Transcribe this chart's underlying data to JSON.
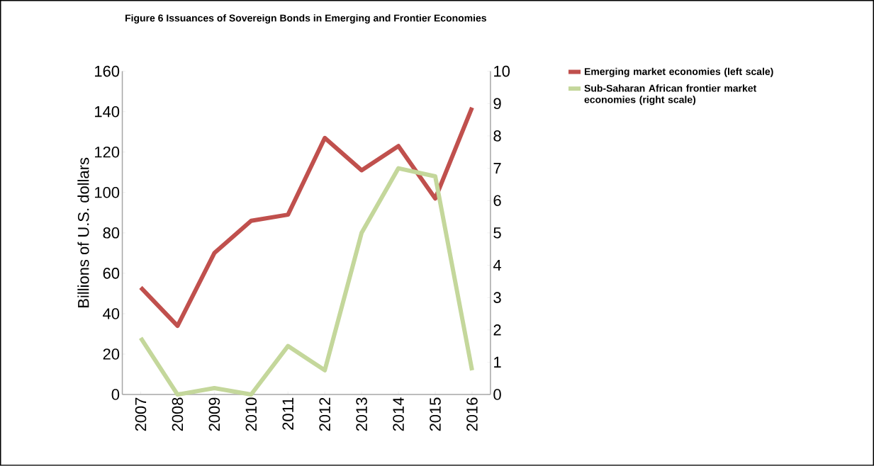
{
  "chart_data": {
    "type": "line",
    "title": "Figure 6 Issuances of Sovereign Bonds in Emerging and Frontier Economies",
    "ylabel": "Billions of U.S. dollars",
    "categories": [
      "2007",
      "2008",
      "2009",
      "2010",
      "2011",
      "2012",
      "2013",
      "2014",
      "2015",
      "2016"
    ],
    "series": [
      {
        "name": "Emerging market economies (left scale)",
        "color": "#c0504d",
        "values": [
          53,
          34,
          70,
          86,
          89,
          127,
          111,
          123,
          97,
          142
        ]
      },
      {
        "name": "Sub-Saharan African frontier market economies (right scale)",
        "color": "#c4d79b",
        "axis": "y2",
        "values": [
          1.75,
          0,
          0.2,
          0,
          1.5,
          0.75,
          5,
          7,
          6.75,
          0.75
        ]
      }
    ],
    "ylim": [
      0,
      160
    ],
    "yticks": [
      0,
      20,
      40,
      60,
      80,
      100,
      120,
      140,
      160
    ],
    "y2lim": [
      0,
      10
    ],
    "y2ticks": [
      0,
      1,
      2,
      3,
      4,
      5,
      6,
      7,
      8,
      9,
      10
    ],
    "legend": "top right",
    "line_style": "solid",
    "marker": "none"
  }
}
